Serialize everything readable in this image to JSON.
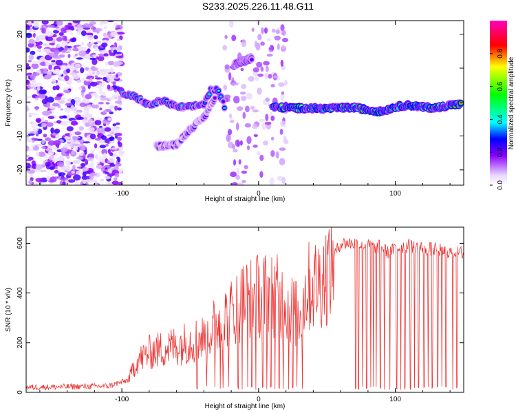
{
  "figure_title": "S233.2025.226.11.48.G11",
  "chart_data": [
    {
      "type": "heatmap",
      "xlabel": "Height of straight line (km)",
      "ylabel": "Frequency (Hz)",
      "xlim": [
        -170,
        150
      ],
      "ylim": [
        -24.5,
        24
      ],
      "x_ticks": [
        -100,
        0,
        100
      ],
      "y_ticks": [
        -20,
        -10,
        0,
        10,
        20
      ],
      "colorbar": {
        "label": "Normalized spectral amplitude",
        "range": [
          0.0,
          1.0
        ],
        "ticks": [
          0.0,
          0.2,
          0.4,
          0.6,
          0.8
        ],
        "tick_labels": [
          "0.0",
          "0.2",
          "0.4",
          "0.6",
          "0.8"
        ]
      },
      "ridges": [
        {
          "name": "main_track",
          "points": [
            [
              10,
              -1.5
            ],
            [
              30,
              -1.8
            ],
            [
              50,
              -1.9
            ],
            [
              70,
              -1.6
            ],
            [
              80,
              -2.3
            ],
            [
              90,
              -2.8
            ],
            [
              100,
              -1.4
            ],
            [
              110,
              -0.9
            ],
            [
              120,
              -1.5
            ],
            [
              130,
              -1.7
            ],
            [
              140,
              -0.8
            ],
            [
              148,
              -0.7
            ]
          ],
          "amplitude": 0.75
        },
        {
          "name": "low_height_cluster",
          "points": [
            [
              -100,
              2.5
            ],
            [
              -90,
              1.5
            ],
            [
              -80,
              -1
            ],
            [
              -70,
              0.5
            ],
            [
              -60,
              -1.5
            ],
            [
              -50,
              -1.5
            ],
            [
              -40,
              -0.5
            ],
            [
              -35,
              3.5
            ],
            [
              -30,
              3.5
            ],
            [
              -25,
              -1.2
            ]
          ],
          "amplitude": 0.45
        },
        {
          "name": "secondary_branch",
          "points": [
            [
              -75,
              -13
            ],
            [
              -60,
              -12.5
            ],
            [
              -50,
              -8
            ],
            [
              -40,
              -4.5
            ],
            [
              -32,
              1
            ]
          ],
          "amplitude": 0.3
        },
        {
          "name": "upper_patch",
          "points": [
            [
              -18,
              11
            ],
            [
              -12,
              12
            ],
            [
              -5,
              13
            ]
          ],
          "amplitude": 0.4
        }
      ]
    },
    {
      "type": "line",
      "xlabel": "Height of straight line (km)",
      "ylabel": "SNR (10 * v/v)",
      "xlim": [
        -170,
        150
      ],
      "ylim": [
        0,
        665
      ],
      "x_ticks": [
        -100,
        0,
        100
      ],
      "y_ticks": [
        0,
        200,
        400,
        600
      ],
      "color": "#ee3333",
      "envelope": [
        [
          -170,
          20
        ],
        [
          -110,
          25
        ],
        [
          -95,
          50
        ],
        [
          -90,
          120
        ],
        [
          -80,
          160
        ],
        [
          -60,
          190
        ],
        [
          -40,
          220
        ],
        [
          -30,
          280
        ],
        [
          -20,
          320
        ],
        [
          -10,
          380
        ],
        [
          0,
          390
        ],
        [
          10,
          400
        ],
        [
          20,
          360
        ],
        [
          30,
          300
        ],
        [
          35,
          420
        ],
        [
          40,
          430
        ],
        [
          45,
          450
        ],
        [
          50,
          480
        ],
        [
          55,
          550
        ],
        [
          60,
          600
        ],
        [
          70,
          600
        ],
        [
          80,
          590
        ],
        [
          90,
          585
        ],
        [
          95,
          560
        ],
        [
          100,
          580
        ],
        [
          110,
          590
        ],
        [
          120,
          580
        ],
        [
          130,
          575
        ],
        [
          140,
          565
        ],
        [
          150,
          560
        ]
      ],
      "dropouts_x": [
        -45,
        -38,
        -32,
        -28,
        -26,
        -22,
        -15,
        -12,
        -8,
        -5,
        -2,
        3,
        6,
        9,
        12,
        15,
        18,
        22,
        25,
        28,
        32,
        71,
        73,
        76,
        79,
        82,
        84,
        86,
        89,
        92,
        96,
        101,
        104,
        107,
        111,
        114,
        117,
        121,
        124,
        127,
        131,
        134,
        137,
        142,
        145
      ]
    }
  ]
}
